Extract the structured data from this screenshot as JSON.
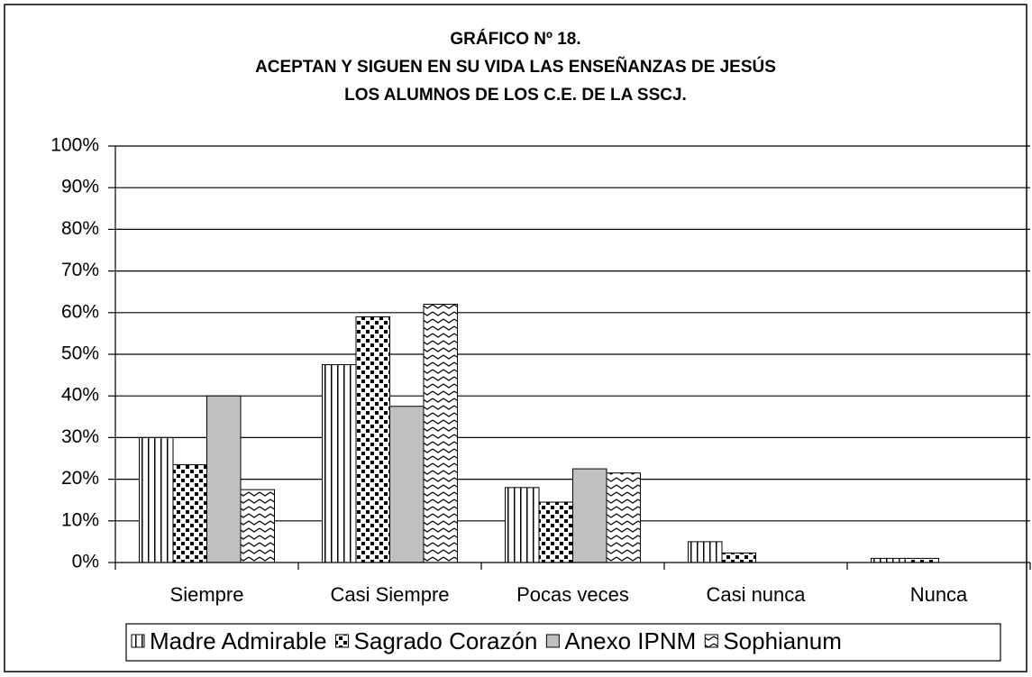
{
  "chart_data": {
    "type": "bar",
    "title": [
      "GRÁFICO Nº 18.",
      "ACEPTAN Y SIGUEN EN SU VIDA LAS ENSEÑANZAS DE JESÚS",
      "LOS ALUMNOS DE LOS C.E. DE LA SSCJ."
    ],
    "categories": [
      "Siempre",
      "Casi Siempre",
      "Pocas veces",
      "Casi nunca",
      "Nunca"
    ],
    "series": [
      {
        "name": "Madre Admirable",
        "pattern": "vertical-lines",
        "color": "#000000",
        "values": [
          30,
          47.5,
          18,
          5,
          1
        ]
      },
      {
        "name": "Sagrado Corazón",
        "pattern": "dots",
        "color": "#000000",
        "values": [
          23.5,
          59,
          14.5,
          2.3,
          1
        ]
      },
      {
        "name": "Anexo IPNM",
        "pattern": "solid",
        "color": "#c0c0c0",
        "values": [
          40,
          37.5,
          22.5,
          0,
          0
        ]
      },
      {
        "name": "Sophianum",
        "pattern": "waves",
        "color": "#000000",
        "values": [
          17.5,
          62,
          21.5,
          0,
          0
        ]
      }
    ],
    "ylim": [
      0,
      100
    ],
    "yticks": [
      {
        "value": 0,
        "label": "0%"
      },
      {
        "value": 10,
        "label": "10%"
      },
      {
        "value": 20,
        "label": "20%"
      },
      {
        "value": 30,
        "label": "30%"
      },
      {
        "value": 40,
        "label": "40%"
      },
      {
        "value": 50,
        "label": "50%"
      },
      {
        "value": 60,
        "label": "60%"
      },
      {
        "value": 70,
        "label": "70%"
      },
      {
        "value": 80,
        "label": "80%"
      },
      {
        "value": 90,
        "label": "90%"
      },
      {
        "value": 100,
        "label": "100%"
      }
    ],
    "grid": true,
    "legend": "bottom"
  }
}
